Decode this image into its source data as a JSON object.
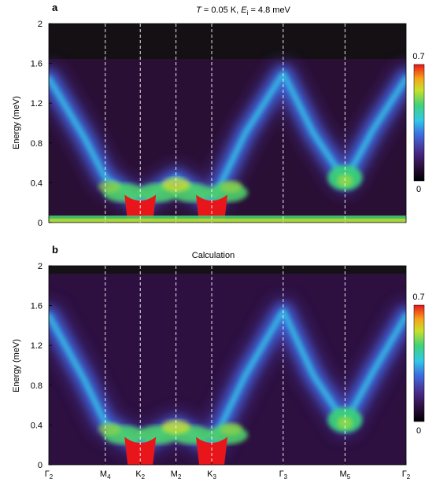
{
  "chart_data": [
    {
      "type": "heatmap",
      "panel": "a",
      "title_parts": {
        "T_symbol": "T",
        "T_value": " = 0.05 K, ",
        "E_symbol": "E",
        "E_sub": "i",
        "E_value": " = 4.8 meV"
      },
      "ylabel": "Energy (meV)",
      "ylim": [
        0,
        2
      ],
      "yticks": [
        "0",
        "0.4",
        "0.8",
        "1.2",
        "1.6",
        "2"
      ],
      "colorbar": {
        "min": 0,
        "max": 0.7,
        "min_label": "0",
        "max_label": "0.7"
      },
      "q_path": [
        {
          "base": "Γ",
          "sub": "2",
          "pos": 0.0
        },
        {
          "base": "M",
          "sub": "4",
          "pos": 0.158
        },
        {
          "base": "K",
          "sub": "2",
          "pos": 0.256
        },
        {
          "base": "M",
          "sub": "2",
          "pos": 0.356
        },
        {
          "base": "K",
          "sub": "3",
          "pos": 0.456
        },
        {
          "base": "Γ",
          "sub": "3",
          "pos": 0.656
        },
        {
          "base": "M",
          "sub": "5",
          "pos": 0.829
        },
        {
          "base": "Γ",
          "sub": "2",
          "pos": 1.0
        }
      ],
      "dashed_lines_at": [
        0.158,
        0.256,
        0.356,
        0.456,
        0.656,
        0.829
      ],
      "dispersion_branches": [
        {
          "q": [
            0.0,
            0.1,
            0.158,
            0.256,
            0.356,
            0.456,
            0.55,
            0.656,
            0.74,
            0.829,
            0.91,
            1.0
          ],
          "E": [
            1.45,
            0.85,
            0.45,
            0.2,
            0.45,
            0.2,
            0.9,
            1.5,
            0.9,
            0.42,
            0.95,
            1.45
          ]
        }
      ],
      "elastic_line_E": 0.02
    },
    {
      "type": "heatmap",
      "panel": "b",
      "title": "Calculation",
      "ylabel": "Energy (meV)",
      "ylim": [
        0,
        2
      ],
      "yticks": [
        "0",
        "0.4",
        "0.8",
        "1.2",
        "1.6",
        "2"
      ],
      "colorbar": {
        "min": 0,
        "max": 0.7,
        "min_label": "0",
        "max_label": "0.7"
      },
      "dispersion_branches": [
        {
          "q": [
            0.0,
            0.1,
            0.158,
            0.256,
            0.356,
            0.456,
            0.55,
            0.656,
            0.74,
            0.829,
            0.91,
            1.0
          ],
          "E": [
            1.5,
            0.85,
            0.42,
            0.2,
            0.4,
            0.2,
            0.9,
            1.55,
            0.9,
            0.42,
            0.95,
            1.5
          ]
        }
      ],
      "top_cutoff_E": 1.92
    }
  ],
  "panels": {
    "a": {
      "letter": "a"
    },
    "b": {
      "letter": "b"
    }
  }
}
